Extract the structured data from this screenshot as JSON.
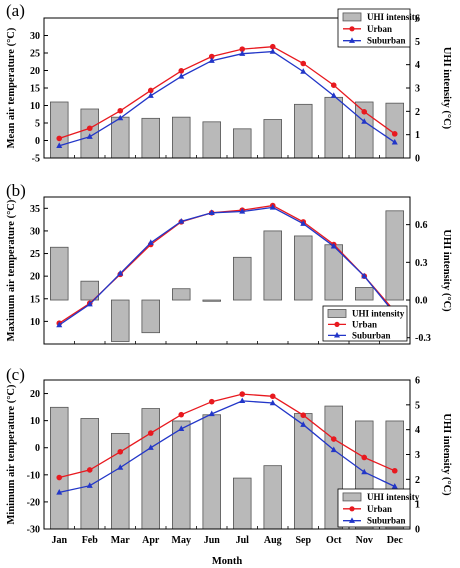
{
  "colors": {
    "urban": "#e8191f",
    "suburban": "#2236c8",
    "bar": "#b9b9b9",
    "bar_edge": "#555555"
  },
  "x_label": "Month",
  "chart_data": [
    {
      "type": "bar",
      "panel_label": "(a)",
      "categories": [
        "Jan",
        "Feb",
        "Mar",
        "Apr",
        "May",
        "Jun",
        "Jul",
        "Aug",
        "Sep",
        "Oct",
        "Nov",
        "Dec"
      ],
      "ylabel": "Mean air temperature (°C)",
      "y2label": "UHI intensity (°C)",
      "ylim": [
        -5,
        35
      ],
      "yticks": [
        -5,
        0,
        5,
        10,
        15,
        20,
        25,
        30
      ],
      "y2lim": [
        0,
        6
      ],
      "y2ticks": [
        0,
        1,
        2,
        3,
        4,
        5,
        6
      ],
      "legend": "top-right",
      "series": [
        {
          "name": "UHI intensity",
          "type": "bar",
          "axis": "right",
          "values": [
            2.4,
            2.1,
            1.75,
            1.7,
            1.75,
            1.55,
            1.25,
            1.65,
            2.3,
            2.6,
            2.4,
            2.35
          ]
        },
        {
          "name": "Urban",
          "type": "line",
          "axis": "left",
          "values": [
            0.6,
            3.5,
            8.5,
            14.3,
            19.9,
            24.0,
            26.1,
            26.8,
            22.0,
            15.8,
            8.2,
            1.9
          ]
        },
        {
          "name": "Suburban",
          "type": "line",
          "axis": "left",
          "values": [
            -1.5,
            1.1,
            6.4,
            12.8,
            18.3,
            22.8,
            24.8,
            25.4,
            19.7,
            12.8,
            5.4,
            -0.5
          ]
        }
      ]
    },
    {
      "type": "bar",
      "panel_label": "(b)",
      "categories": [
        "Jan",
        "Feb",
        "Mar",
        "Apr",
        "May",
        "Jun",
        "Jul",
        "Aug",
        "Sep",
        "Oct",
        "Nov",
        "Dec"
      ],
      "ylabel": "Maximum air temperature (°C)",
      "y2label": "UHI intensity (°C)",
      "ylim": [
        5,
        37.5
      ],
      "yticks": [
        10,
        15,
        20,
        25,
        30,
        35
      ],
      "y2lim": [
        -0.35,
        0.82
      ],
      "y2ticks": [
        -0.3,
        0.0,
        0.3,
        0.6
      ],
      "y2ticklabels": [
        "-0.3",
        "0.0",
        "0.3",
        "0.6"
      ],
      "legend": "bottom-right",
      "series": [
        {
          "name": "UHI intensity",
          "type": "bar",
          "axis": "right",
          "values": [
            0.42,
            0.15,
            -0.33,
            -0.26,
            0.09,
            -0.01,
            0.34,
            0.55,
            0.51,
            0.44,
            0.1,
            0.71
          ]
        },
        {
          "name": "Urban",
          "type": "line",
          "axis": "left",
          "values": [
            9.6,
            14.0,
            20.4,
            27.0,
            32.0,
            34.0,
            34.6,
            35.6,
            32.0,
            27.0,
            20.0,
            12.2
          ]
        },
        {
          "name": "Suburban",
          "type": "line",
          "axis": "left",
          "values": [
            9.2,
            13.8,
            20.6,
            27.4,
            32.1,
            34.0,
            34.3,
            35.2,
            31.6,
            26.6,
            20.0,
            11.7
          ]
        }
      ]
    },
    {
      "type": "bar",
      "panel_label": "(c)",
      "categories": [
        "Jan",
        "Feb",
        "Mar",
        "Apr",
        "May",
        "Jun",
        "Jul",
        "Aug",
        "Sep",
        "Oct",
        "Nov",
        "Dec"
      ],
      "ylabel": "Minimum air temperature (°C)",
      "y2label": "UHI intensity (°C)",
      "xlabel": "Month",
      "ylim": [
        -30,
        25
      ],
      "yticks": [
        -30,
        -20,
        -10,
        0,
        10,
        20
      ],
      "y2lim": [
        0,
        6
      ],
      "y2ticks": [
        0,
        1,
        2,
        3,
        4,
        5,
        6
      ],
      "legend": "bottom-right",
      "series": [
        {
          "name": "UHI intensity",
          "type": "bar",
          "axis": "right",
          "values": [
            4.9,
            4.45,
            3.85,
            4.85,
            4.35,
            4.6,
            2.05,
            2.55,
            4.65,
            4.95,
            4.35,
            4.35
          ]
        },
        {
          "name": "Urban",
          "type": "line",
          "axis": "left",
          "values": [
            -11.0,
            -8.2,
            -1.5,
            5.4,
            12.2,
            17.0,
            19.8,
            19.0,
            12.0,
            3.2,
            -3.6,
            -8.5
          ]
        },
        {
          "name": "Suburban",
          "type": "line",
          "axis": "left",
          "values": [
            -16.5,
            -14.0,
            -7.3,
            0.0,
            7.0,
            12.5,
            17.3,
            16.5,
            8.5,
            -0.8,
            -9.0,
            -14.3
          ]
        }
      ]
    }
  ]
}
